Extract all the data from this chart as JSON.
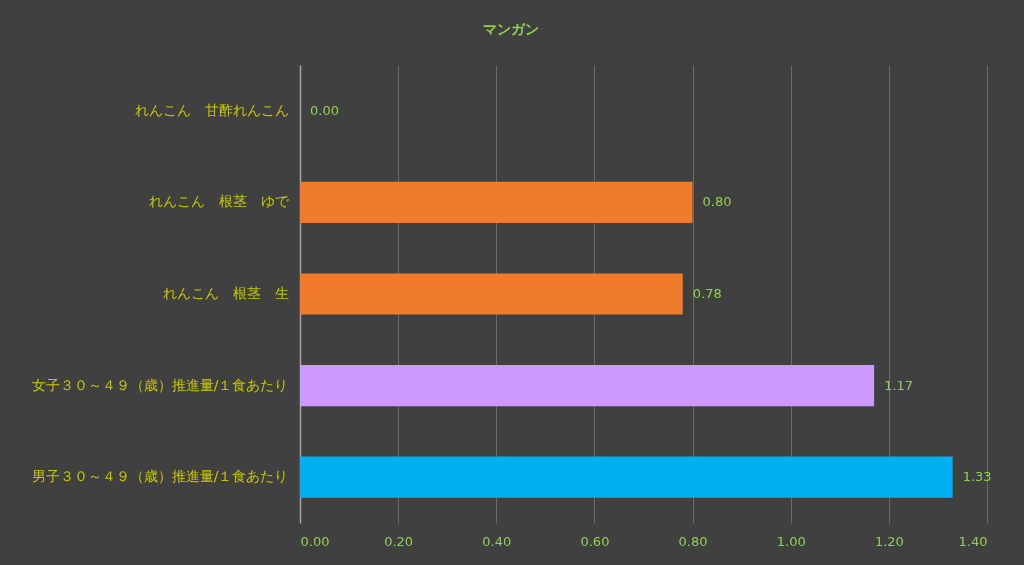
{
  "chart_data": {
    "type": "bar",
    "orientation": "horizontal",
    "title": "マンガン",
    "categories": [
      "れんこん　甘酢れんこん",
      "れんこん　根茎　ゆで",
      "れんこん　根茎　生",
      "女子３０～４９（歳）推進量/１食あたり",
      "男子３０～４９（歳）推進量/１食あたり"
    ],
    "values": [
      0,
      0.8,
      0.78,
      1.17,
      1.33
    ],
    "colors": [
      "#f07b2b",
      "#f07b2b",
      "#f07b2b",
      "#cc99ff",
      "#00b0f0"
    ],
    "value_labels": [
      "0.00",
      "0.80",
      "0.78",
      "1.17",
      "1.33"
    ],
    "xlim": [
      0,
      1.4
    ],
    "xticks": [
      {
        "value": 0,
        "label": "0.00"
      },
      {
        "value": 0.2,
        "label": "0.20"
      },
      {
        "value": 0.4,
        "label": "0.40"
      },
      {
        "value": 0.6,
        "label": "0.60"
      },
      {
        "value": 0.8,
        "label": "0.80"
      },
      {
        "value": 1.0,
        "label": "1.00"
      },
      {
        "value": 1.2,
        "label": "1.20"
      },
      {
        "value": 1.4,
        "label": "1.40"
      }
    ],
    "grid": "x",
    "legend": false
  }
}
